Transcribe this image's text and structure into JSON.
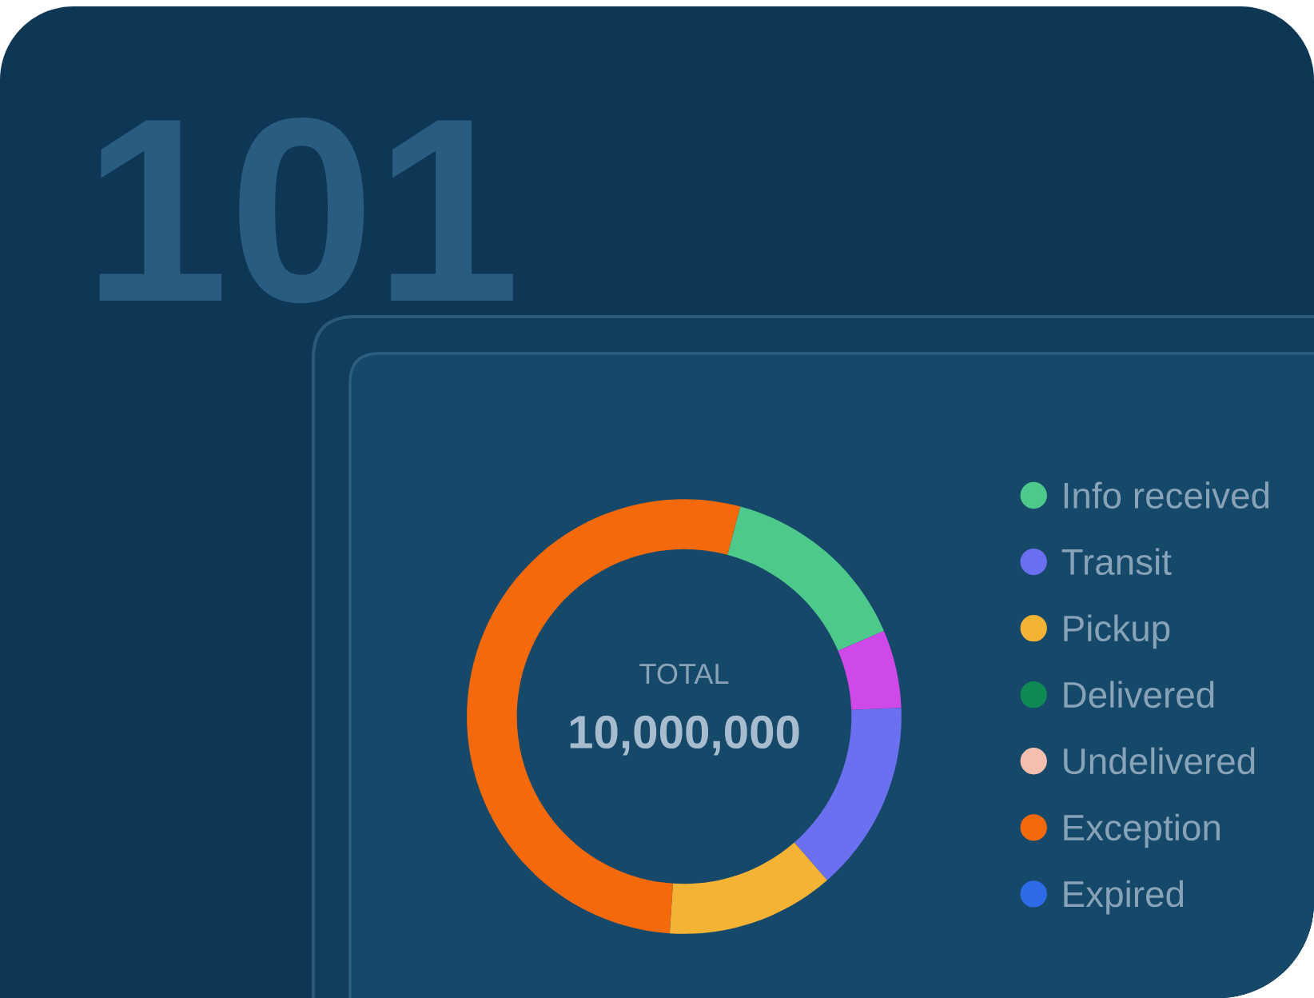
{
  "chart_data": {
    "type": "donut",
    "categories": [
      "Info received",
      null,
      "Transit",
      "Pickup",
      "Delivered",
      "Undelivered",
      "Exception",
      "Expired"
    ],
    "values": [
      14.4,
      5.8,
      14.2,
      12.5,
      0,
      0,
      53.1,
      0
    ],
    "colors": [
      "#4cc98b",
      "#cf48e8",
      "#6a70ef",
      "#f5b335",
      "#0f8a55",
      "#f5bfae",
      "#f46a0b",
      "#2e6be6"
    ],
    "legend": "right",
    "annotations": [
      "101",
      "TOTAL",
      "10,000,000"
    ]
  }
}
